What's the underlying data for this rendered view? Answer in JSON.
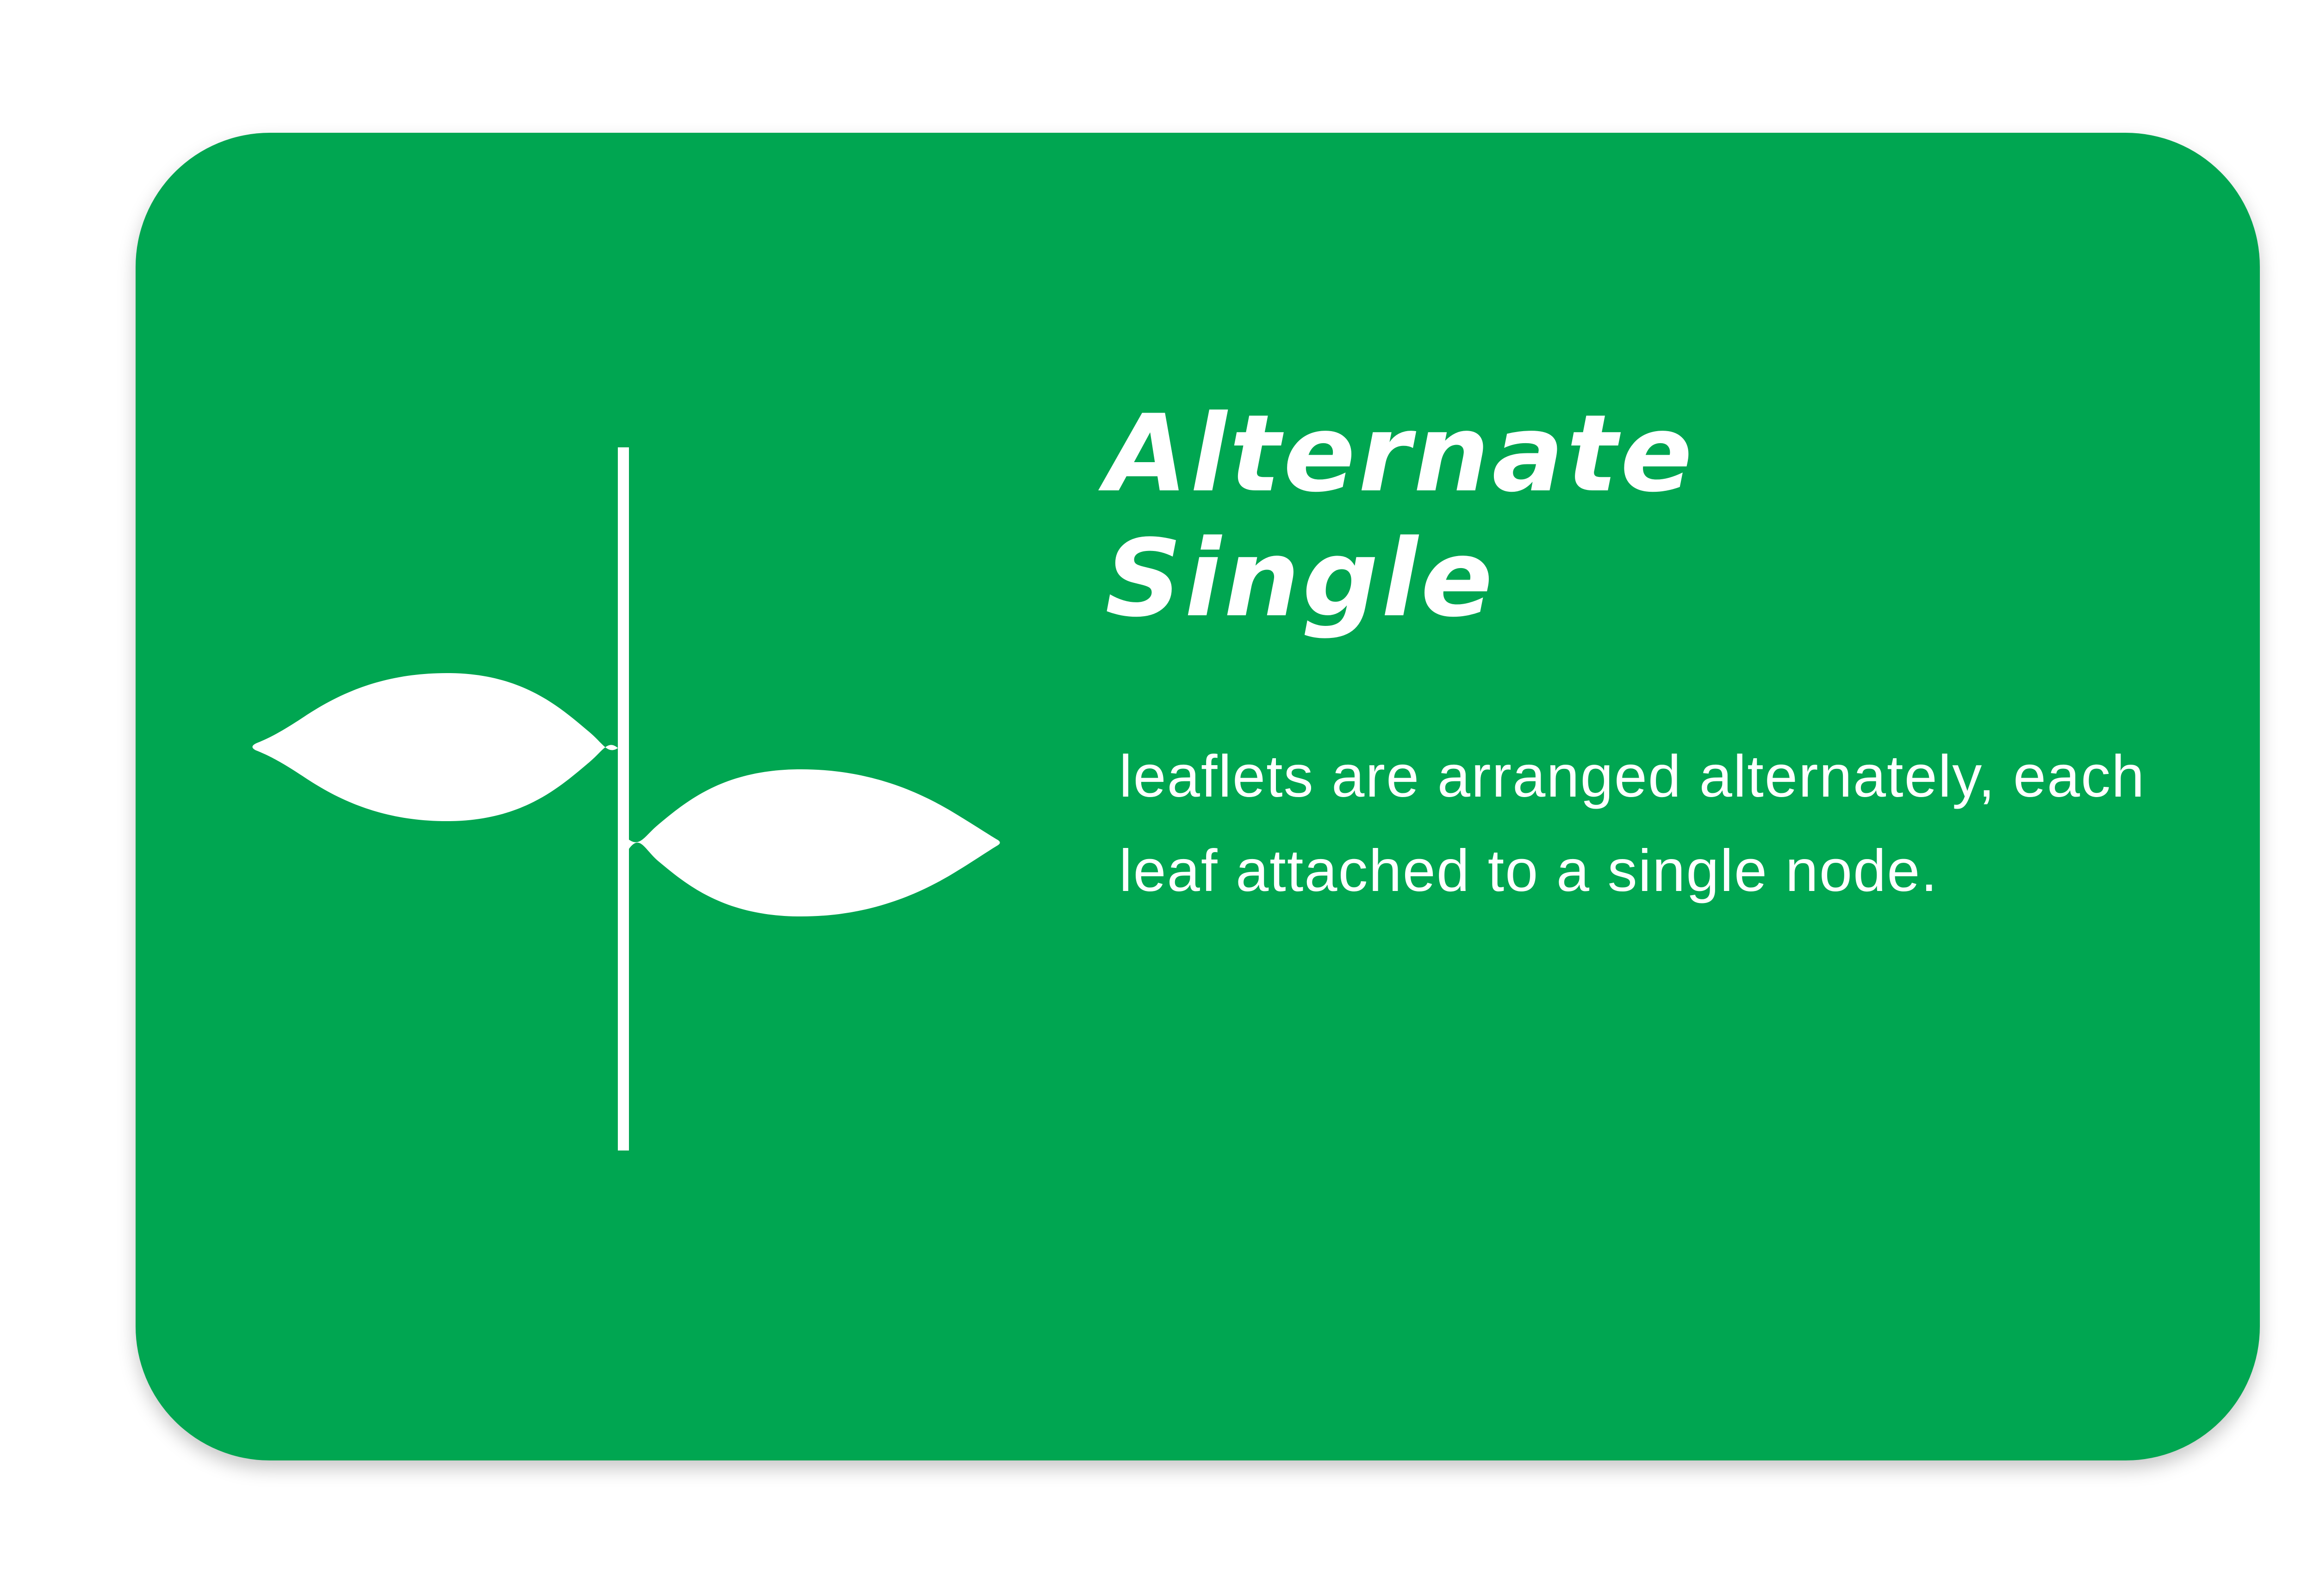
{
  "card": {
    "background_color": "#00a651",
    "foreground_color": "#ffffff"
  },
  "title": {
    "line1": "Alternate",
    "line2": "Single"
  },
  "description": "leaflets are arranged alternately, each leaf attached to a single node.",
  "illustration": {
    "icon": "alternate-single-leaf-arrangement-icon"
  }
}
